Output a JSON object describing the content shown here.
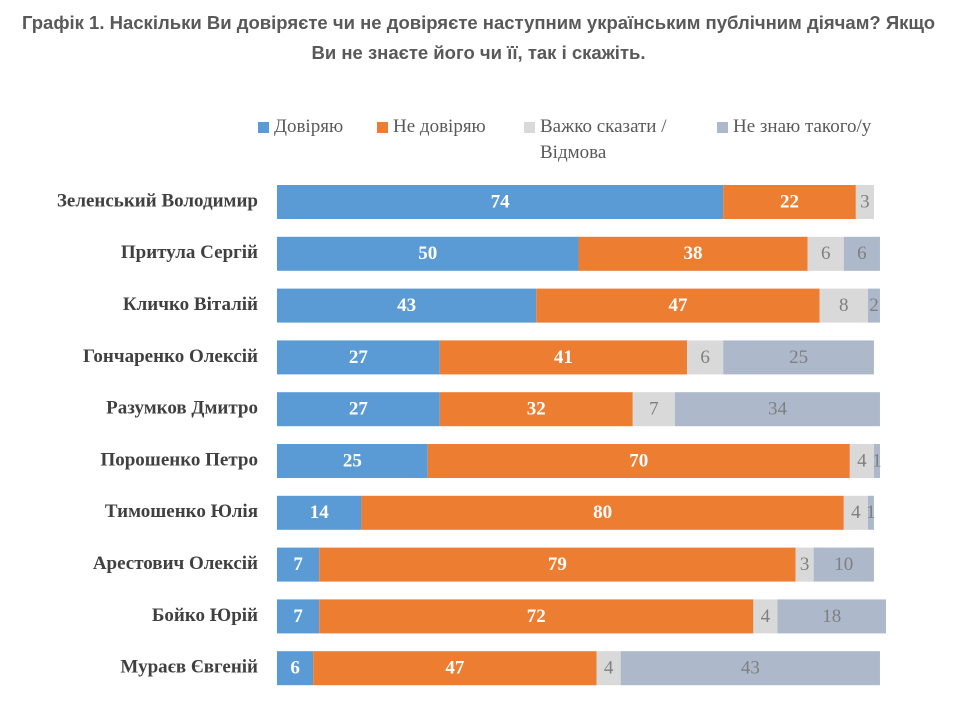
{
  "chart_data": {
    "type": "stacked-bar-horizontal",
    "title": "Графік 1. Наскільки Ви довіряєте чи не довіряєте наступним українським публічним діячам? Якщо Ви не знаєте його чи її, так і скажіть.",
    "categories": [
      "Зеленський Володимир",
      "Притула Сергій",
      "Кличко Віталій",
      "Гончаренко Олексій",
      "Разумков Дмитро",
      "Порошенко Петро",
      "Тимошенко Юлія",
      "Арестович Олексій",
      "Бойко Юрій",
      "Мураєв Євгеній"
    ],
    "series": [
      {
        "name": "Довіряю",
        "color": "#5b9bd5",
        "values": [
          74,
          50,
          43,
          27,
          27,
          25,
          14,
          7,
          7,
          6
        ]
      },
      {
        "name": "Не довіряю",
        "color": "#ed7d31",
        "values": [
          22,
          38,
          47,
          41,
          32,
          70,
          80,
          79,
          72,
          47
        ]
      },
      {
        "name": "Важко сказати / Відмова",
        "color": "#d9d9d9",
        "values": [
          3,
          6,
          8,
          6,
          7,
          4,
          4,
          3,
          4,
          4
        ]
      },
      {
        "name": "Не знаю такого/у",
        "color": "#adb9ca",
        "values": [
          null,
          6,
          2,
          25,
          34,
          1,
          1,
          10,
          18,
          43
        ]
      }
    ]
  }
}
